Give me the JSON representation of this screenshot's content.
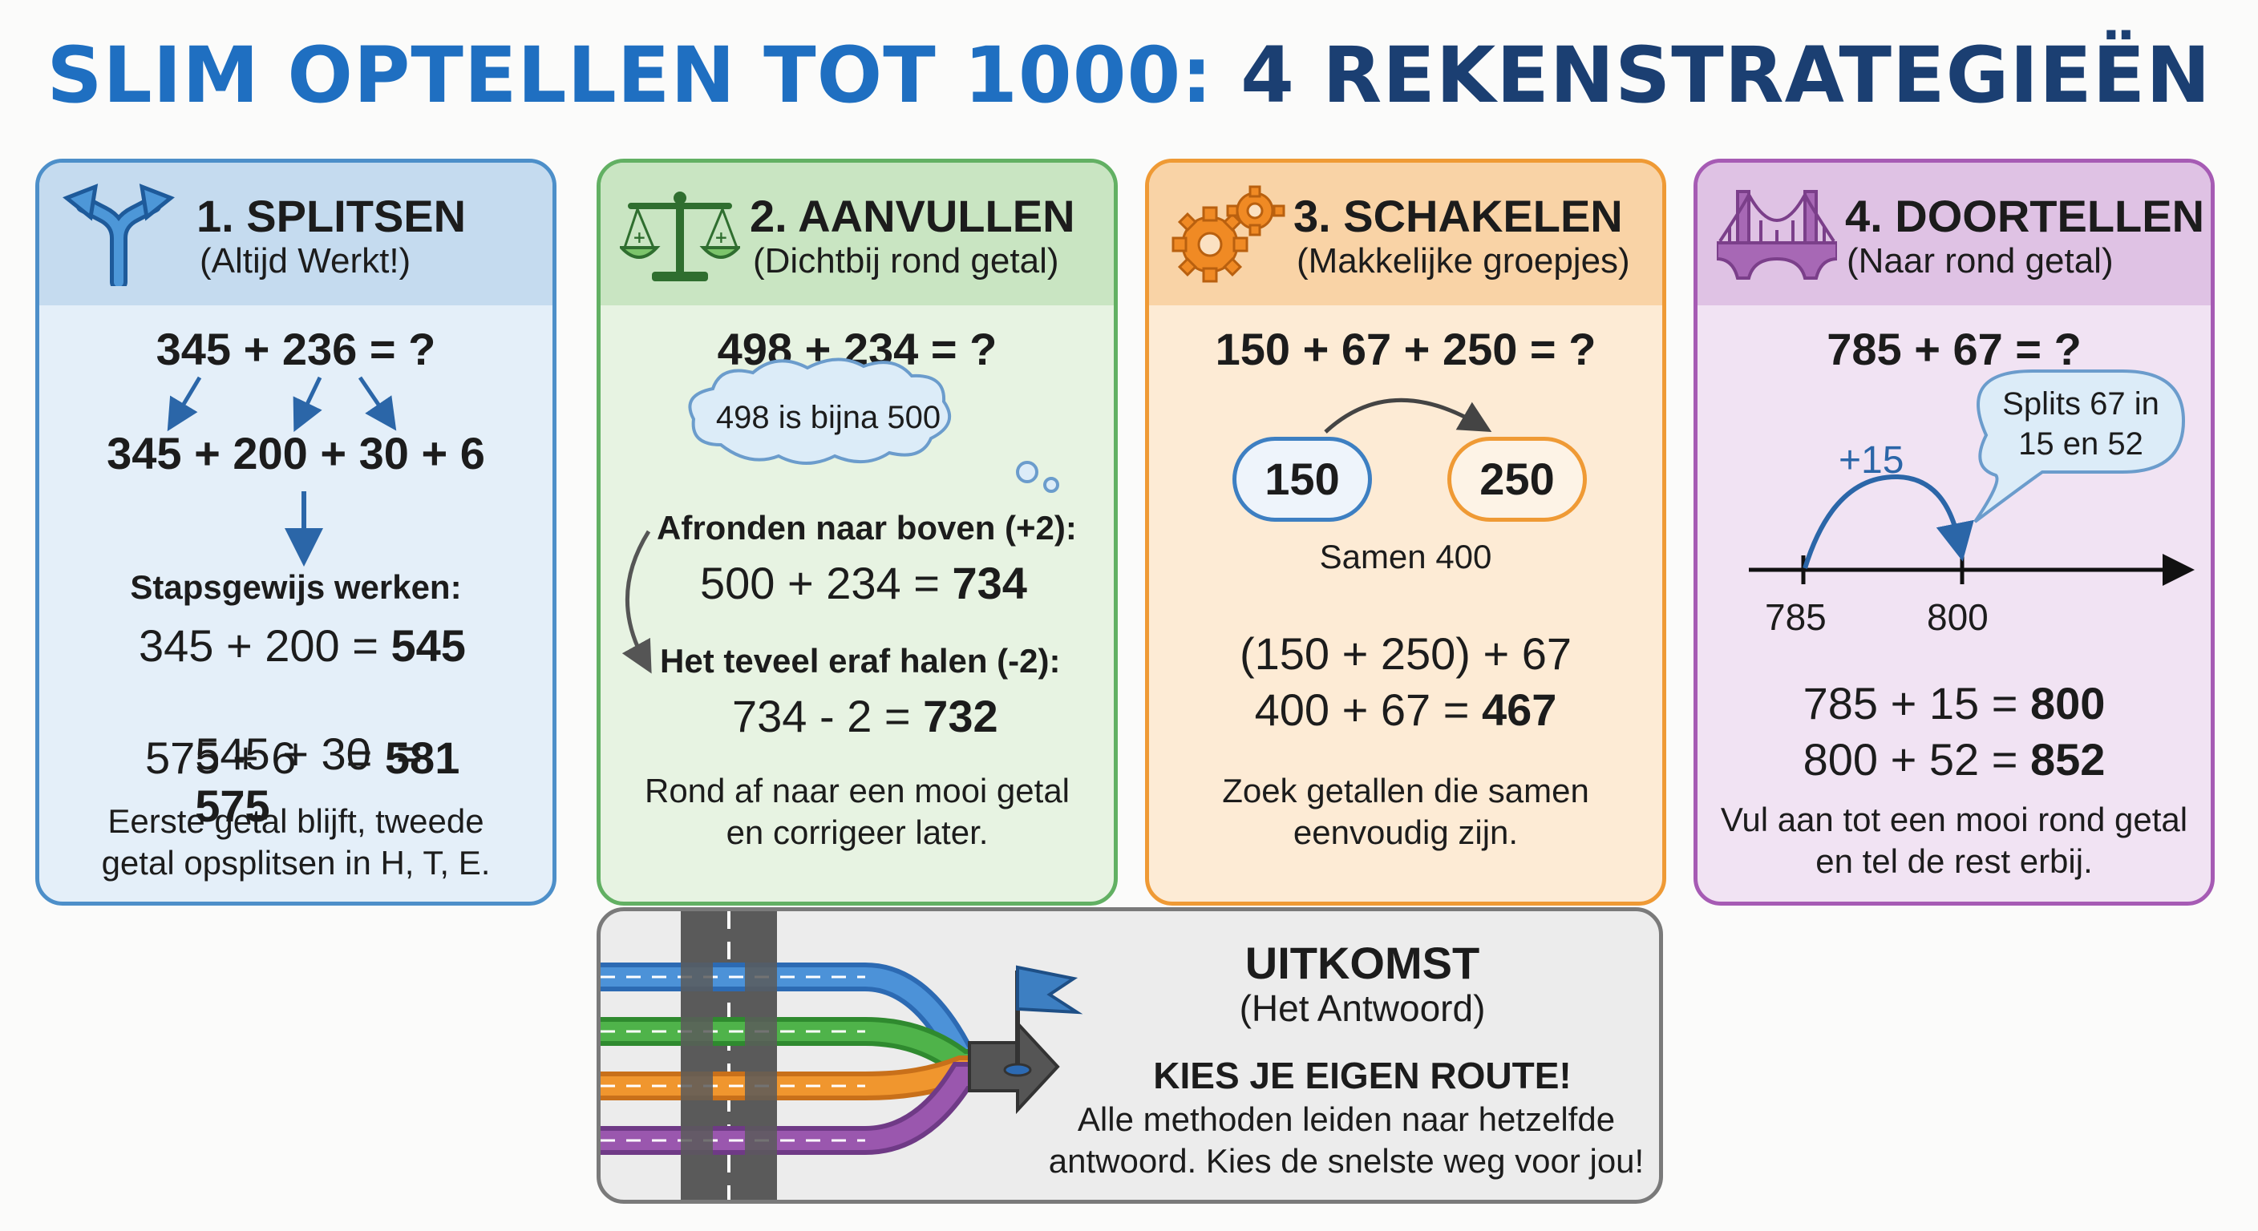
{
  "title": {
    "part1": "SLIM OPTELLEN TOT 1000:",
    "part2": "4 REKENSTRATEGIEËN"
  },
  "cards": [
    {
      "title": "1. SPLITSEN",
      "subtitle": "(Altijd Werkt!)",
      "icon": "split-arrow-icon",
      "problem": "345 + 236 = ?",
      "split": "345 + 200 + 30 + 6",
      "steps_label": "Stapsgewijs werken:",
      "steps": [
        {
          "expr": "345 + 200 =",
          "result": "545"
        },
        {
          "expr": "545 + 30  =",
          "result": "575"
        },
        {
          "expr": "575 + 6    =",
          "result": "581"
        }
      ],
      "note": "Eerste getal blijft, tweede getal opsplitsen in H, T, E."
    },
    {
      "title": "2. AANVULLEN",
      "subtitle": "(Dichtbij rond getal)",
      "icon": "balance-scale-icon",
      "problem": "498 + 234 = ?",
      "thought": "498 is bijna 500",
      "step1_label": "Afronden naar boven (+2):",
      "step1_expr": "500 + 234 =",
      "step1_result": "734",
      "step2_label": "Het teveel eraf halen (-2):",
      "step2_expr": "734 - 2 =",
      "step2_result": "732",
      "note": "Rond af naar een mooi getal en corrigeer later."
    },
    {
      "title": "3. SCHAKELEN",
      "subtitle": "(Makkelijke groepjes)",
      "icon": "gears-icon",
      "problem": "150 + 67 + 250 = ?",
      "pill_a": "150",
      "pill_b": "250",
      "together": "Samen 400",
      "line1": "(150 + 250) + 67",
      "line2_expr": "400 + 67 =",
      "line2_result": "467",
      "note": "Zoek getallen die samen eenvoudig zijn."
    },
    {
      "title": "4. DOORTELLEN",
      "subtitle": "(Naar rond getal)",
      "icon": "bridge-icon",
      "problem": "785 + 67 = ?",
      "callout": "Splits 67 in 15 en 52",
      "jump": "+15",
      "tick_a": "785",
      "tick_b": "800",
      "line1_expr": "785 + 15 =",
      "line1_result": "800",
      "line2_expr": "800 + 52 =",
      "line2_result": "852",
      "note": "Vul aan tot een mooi rond getal en tel de rest erbij."
    }
  ],
  "result": {
    "title": "UITKOMST",
    "subtitle": "(Het Antwoord)",
    "headline": "KIES JE EIGEN ROUTE!",
    "text": "Alle methoden leiden naar hetzelfde antwoord. Kies de snelste weg voor jou!",
    "icon": "roads-flag-icon"
  },
  "colors": {
    "blue": "#4d8fc9",
    "green": "#62b063",
    "orange": "#ef9a35",
    "purple": "#a65bb4",
    "title_blue": "#1f6fc1",
    "title_navy": "#1b3f72"
  }
}
